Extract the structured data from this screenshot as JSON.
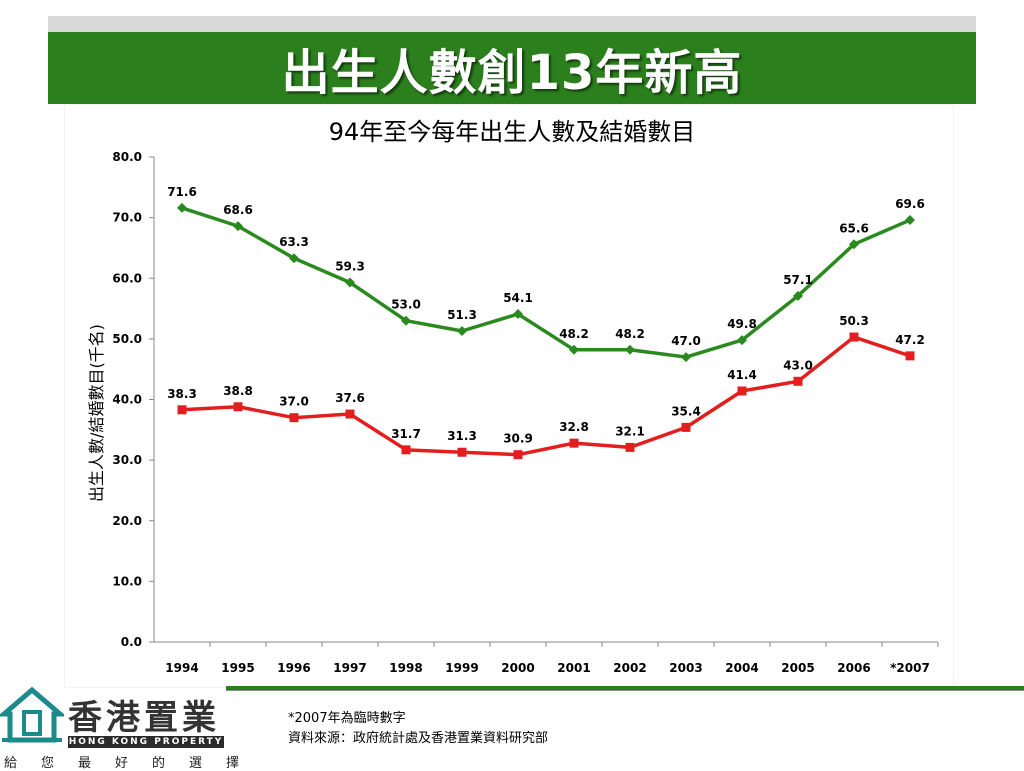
{
  "header": {
    "title": "出生人數創13年新高"
  },
  "colors": {
    "banner": "#2b7f1d",
    "births": "#2b8a1f",
    "marriages": "#e31e1e"
  },
  "chart_data": {
    "type": "line",
    "title": "94年至今每年出生人數及結婚數目",
    "ylabel": "出生人數/結婚數目(千名)",
    "xlabel": "",
    "ylim": [
      0,
      80
    ],
    "yticks": [
      "0.0",
      "10.0",
      "20.0",
      "30.0",
      "40.0",
      "50.0",
      "60.0",
      "70.0",
      "80.0"
    ],
    "categories": [
      "1994",
      "1995",
      "1996",
      "1997",
      "1998",
      "1999",
      "2000",
      "2001",
      "2002",
      "2003",
      "2004",
      "2005",
      "2006",
      "*2007"
    ],
    "grid": false,
    "legend": "none",
    "series": [
      {
        "color": "#2b8a1f",
        "marker": "diamond",
        "values": [
          71.6,
          68.6,
          63.3,
          59.3,
          53.0,
          51.3,
          54.1,
          48.2,
          48.2,
          47.0,
          49.8,
          57.1,
          65.6,
          69.6
        ],
        "labels": [
          "71.6",
          "68.6",
          "63.3",
          "59.3",
          "53.0",
          "51.3",
          "54.1",
          "48.2",
          "48.2",
          "47.0",
          "49.8",
          "57.1",
          "65.6",
          "69.6"
        ]
      },
      {
        "color": "#e31e1e",
        "marker": "square",
        "values": [
          38.3,
          38.8,
          37.0,
          37.6,
          31.7,
          31.3,
          30.9,
          32.8,
          32.1,
          35.4,
          41.4,
          43.0,
          50.3,
          47.2
        ],
        "labels": [
          "38.3",
          "38.8",
          "37.0",
          "37.6",
          "31.7",
          "31.3",
          "30.9",
          "32.8",
          "32.1",
          "35.4",
          "41.4",
          "43.0",
          "50.3",
          "47.2"
        ]
      }
    ]
  },
  "footer": {
    "note1": "*2007年為臨時數字",
    "note2": "資料來源：政府統計處及香港置業資料研究部"
  },
  "logo": {
    "name": "香港置業",
    "english": "HONG KONG PROPERTY",
    "slogan": "給您最好的選擇"
  }
}
